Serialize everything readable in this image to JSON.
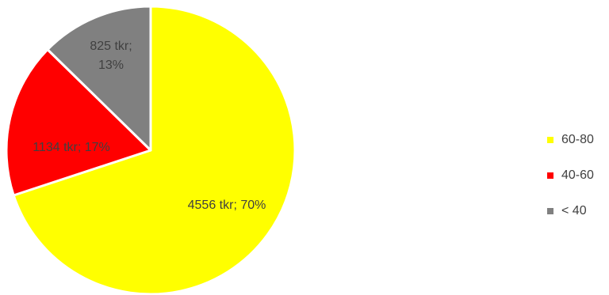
{
  "chart_data": {
    "type": "pie",
    "title": "",
    "slices": [
      {
        "label": "60-80",
        "value": 4556,
        "percent": 70,
        "color": "#FFFF00",
        "data_label": [
          "4556 tkr; 70%"
        ]
      },
      {
        "label": "40-60",
        "value": 1134,
        "percent": 17,
        "color": "#FF0000",
        "data_label": [
          "1134 tkr; 17%"
        ]
      },
      {
        "label": "< 40",
        "value": 825,
        "percent": 13,
        "color": "#808080",
        "data_label": [
          "825 tkr;",
          "13%"
        ]
      }
    ],
    "legend_position": "right",
    "start_angle_deg": 0,
    "direction": "clockwise"
  }
}
